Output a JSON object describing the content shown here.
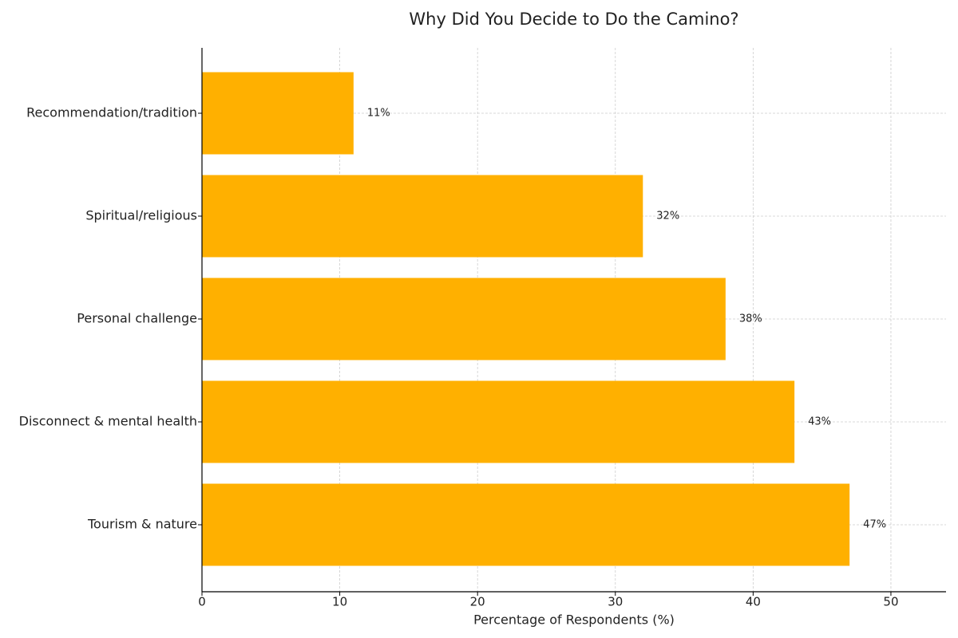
{
  "chart_data": {
    "type": "barh",
    "title": "Why Did You Decide to Do the Camino?",
    "x_label": "Percentage of Respondents (%)",
    "categories": [
      "Recommendation/tradition",
      "Spiritual/religious",
      "Personal challenge",
      "Disconnect & mental health",
      "Tourism & nature"
    ],
    "values": [
      11,
      32,
      38,
      43,
      47
    ],
    "value_labels": [
      "11%",
      "32%",
      "38%",
      "43%",
      "47%"
    ],
    "color": "#ffb000",
    "xlim": [
      0,
      54
    ],
    "xticks": [
      0,
      10,
      20,
      30,
      40,
      50
    ],
    "grid": true
  }
}
